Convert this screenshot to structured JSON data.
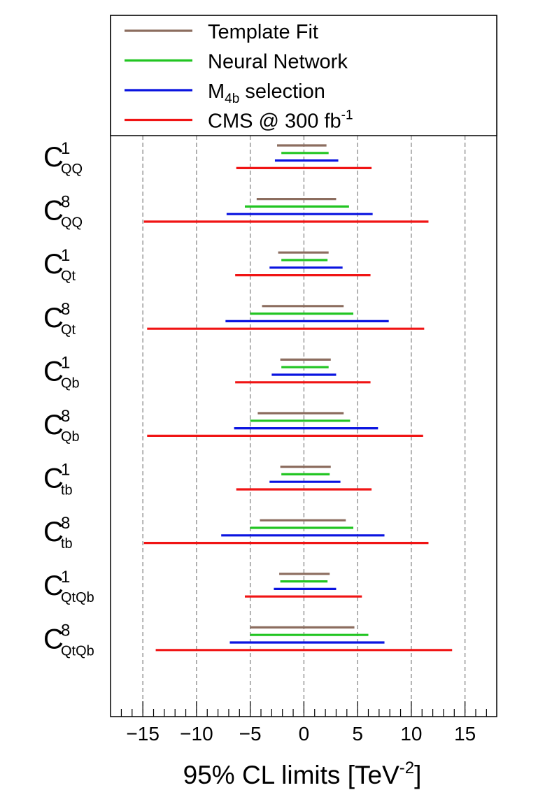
{
  "chart_data": {
    "type": "interval",
    "xlabel_main": "95% CL limits [TeV",
    "xlabel_sup": "-2",
    "xlabel_end": "]",
    "xlim": [
      -18,
      18
    ],
    "xticks": [
      -15,
      -10,
      -5,
      0,
      5,
      10,
      15
    ],
    "xtick_labels": [
      "−15",
      "−10",
      "−5",
      "0",
      "5",
      "10",
      "15"
    ],
    "gridlines": [
      -15,
      -10,
      -5,
      0,
      5,
      10,
      15
    ],
    "legend": [
      {
        "key": "template",
        "label": "Template Fit",
        "color": "#8c6d5f"
      },
      {
        "key": "nn",
        "label": "Neural Network",
        "color": "#22c522"
      },
      {
        "key": "m4b",
        "label_main": "M",
        "label_sub": "4b",
        "label_rest": " selection",
        "color": "#0a14e0"
      },
      {
        "key": "cms",
        "label_main": "CMS @ 300 fb",
        "label_sup": "-1",
        "color": "#f01414"
      }
    ],
    "coefficients": [
      {
        "base": "C",
        "sup": "1",
        "sub": "QQ",
        "template": [
          -2.5,
          2.1
        ],
        "nn": [
          -2.1,
          2.3
        ],
        "m4b": [
          -2.7,
          3.2
        ],
        "cms": [
          -6.3,
          6.3
        ]
      },
      {
        "base": "C",
        "sup": "8",
        "sub": "QQ",
        "template": [
          -4.4,
          3.0
        ],
        "nn": [
          -5.5,
          4.2
        ],
        "m4b": [
          -7.2,
          6.4
        ],
        "cms": [
          -14.9,
          11.6
        ]
      },
      {
        "base": "C",
        "sup": "1",
        "sub": "Qt",
        "template": [
          -2.4,
          2.3
        ],
        "nn": [
          -2.1,
          2.2
        ],
        "m4b": [
          -3.2,
          3.6
        ],
        "cms": [
          -6.4,
          6.2
        ]
      },
      {
        "base": "C",
        "sup": "8",
        "sub": "Qt",
        "template": [
          -3.9,
          3.7
        ],
        "nn": [
          -5.0,
          4.6
        ],
        "m4b": [
          -7.3,
          7.9
        ],
        "cms": [
          -14.6,
          11.2
        ]
      },
      {
        "base": "C",
        "sup": "1",
        "sub": "Qb",
        "template": [
          -2.2,
          2.5
        ],
        "nn": [
          -2.1,
          2.3
        ],
        "m4b": [
          -3.0,
          3.0
        ],
        "cms": [
          -6.4,
          6.2
        ]
      },
      {
        "base": "C",
        "sup": "8",
        "sub": "Qb",
        "template": [
          -4.3,
          3.7
        ],
        "nn": [
          -5.0,
          4.3
        ],
        "m4b": [
          -6.5,
          6.9
        ],
        "cms": [
          -14.6,
          11.1
        ]
      },
      {
        "base": "C",
        "sup": "1",
        "sub": "tb",
        "template": [
          -2.2,
          2.5
        ],
        "nn": [
          -2.1,
          2.4
        ],
        "m4b": [
          -3.2,
          3.4
        ],
        "cms": [
          -6.3,
          6.3
        ]
      },
      {
        "base": "C",
        "sup": "8",
        "sub": "tb",
        "template": [
          -4.1,
          3.9
        ],
        "nn": [
          -5.0,
          4.6
        ],
        "m4b": [
          -7.7,
          7.5
        ],
        "cms": [
          -14.9,
          11.6
        ]
      },
      {
        "base": "C",
        "sup": "1",
        "sub": "QtQb",
        "template": [
          -2.3,
          2.4
        ],
        "nn": [
          -2.2,
          2.2
        ],
        "m4b": [
          -2.8,
          3.0
        ],
        "cms": [
          -5.5,
          5.4
        ]
      },
      {
        "base": "C",
        "sup": "8",
        "sub": "QtQb",
        "template": [
          -5.0,
          4.7
        ],
        "nn": [
          -5.0,
          6.0
        ],
        "m4b": [
          -6.9,
          7.5
        ],
        "cms": [
          -13.8,
          13.8
        ]
      }
    ]
  }
}
